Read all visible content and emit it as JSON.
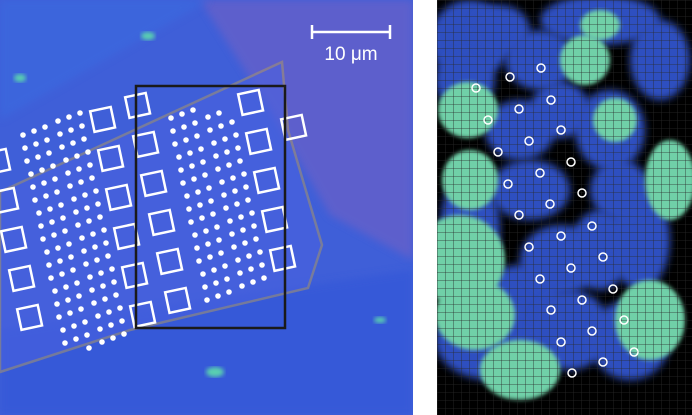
{
  "scale_bar": {
    "label": "10 μm"
  }
}
